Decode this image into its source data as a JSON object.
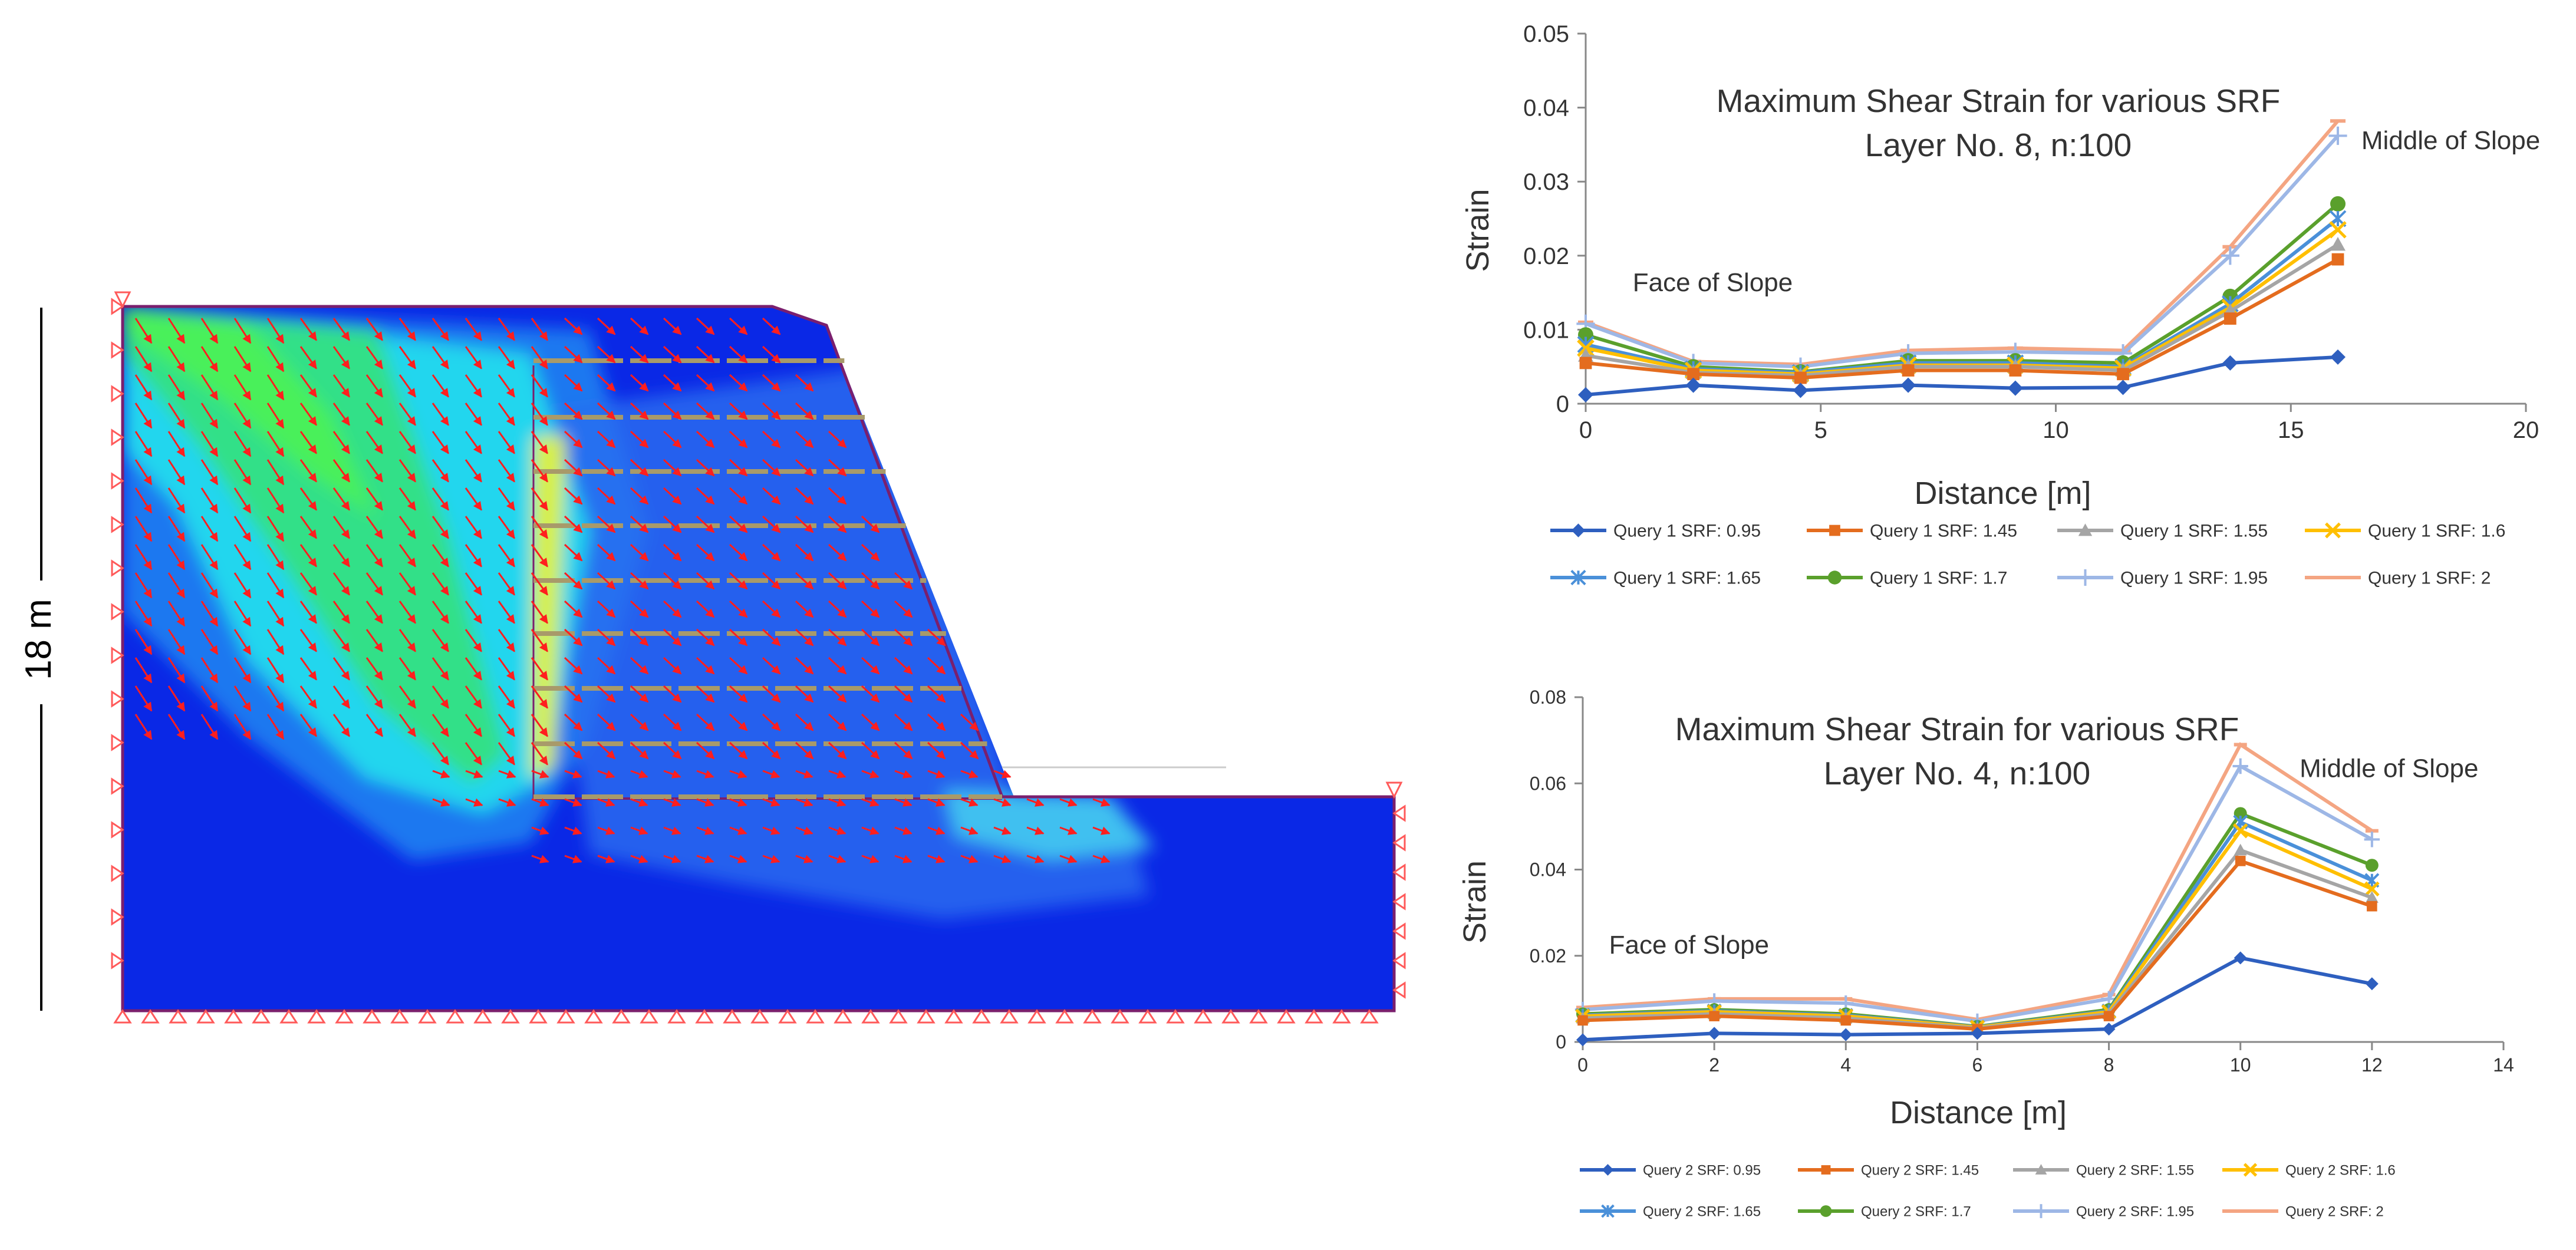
{
  "model": {
    "dimension_label": "18 m",
    "colors": {
      "background": "#0a28e6",
      "boundary": "#7a1f6e",
      "support": "#ff5a5a",
      "arrow": "#ff1e1e",
      "bolt": "#a89a6a"
    }
  },
  "chart_data": [
    {
      "type": "line",
      "title": "Maximum Shear Strain for various SRF",
      "subtitle": "Layer No. 8, n:100",
      "xlabel": "Distance [m]",
      "ylabel": "Strain",
      "xlim": [
        0,
        20
      ],
      "ylim": [
        0,
        0.05
      ],
      "xticks": [
        0,
        5,
        10,
        15,
        20
      ],
      "yticks": [
        0,
        0.01,
        0.02,
        0.03,
        0.04,
        0.05
      ],
      "yticklabels": [
        "0",
        "0.01",
        "0.02",
        "0.03",
        "0.04",
        "0.05"
      ],
      "grid": false,
      "legend_position": "bottom",
      "annotations": [
        {
          "text": "Face of Slope",
          "x": 1,
          "y": 0.0152
        },
        {
          "text": "Middle of Slope",
          "x": 16.5,
          "y": 0.0344
        }
      ],
      "x": [
        0,
        2.29,
        4.57,
        6.86,
        9.14,
        11.43,
        13.71,
        16
      ],
      "series": [
        {
          "name": "Query 1 SRF: 0.95",
          "color": "#2e5fbf",
          "marker": "diamond",
          "values": [
            0.0012,
            0.0025,
            0.0018,
            0.0025,
            0.0021,
            0.0022,
            0.0055,
            0.0063
          ]
        },
        {
          "name": "Query 1 SRF: 1.45",
          "color": "#e46c1e",
          "marker": "square",
          "values": [
            0.0055,
            0.004,
            0.0035,
            0.0045,
            0.0045,
            0.004,
            0.0115,
            0.0195
          ]
        },
        {
          "name": "Query 1 SRF: 1.55",
          "color": "#a5a5a5",
          "marker": "triangle",
          "values": [
            0.0065,
            0.0042,
            0.0038,
            0.005,
            0.005,
            0.0045,
            0.0125,
            0.0215
          ]
        },
        {
          "name": "Query 1 SRF: 1.6",
          "color": "#ffbf00",
          "marker": "x",
          "values": [
            0.0075,
            0.0045,
            0.004,
            0.0052,
            0.0052,
            0.0048,
            0.013,
            0.0235
          ]
        },
        {
          "name": "Query 1 SRF: 1.65",
          "color": "#4a90d9",
          "marker": "star",
          "values": [
            0.008,
            0.0047,
            0.0042,
            0.0055,
            0.0055,
            0.005,
            0.0135,
            0.025
          ]
        },
        {
          "name": "Query 1 SRF: 1.7",
          "color": "#5aa02c",
          "marker": "circle",
          "values": [
            0.0093,
            0.005,
            0.0043,
            0.0058,
            0.0058,
            0.0055,
            0.0145,
            0.027
          ]
        },
        {
          "name": "Query 1 SRF: 1.95",
          "color": "#9db7e6",
          "marker": "plus",
          "values": [
            0.0108,
            0.0055,
            0.005,
            0.0068,
            0.007,
            0.0068,
            0.02,
            0.0362
          ]
        },
        {
          "name": "Query 1 SRF: 2",
          "color": "#f4a582",
          "marker": "dash",
          "values": [
            0.011,
            0.0057,
            0.0053,
            0.0072,
            0.0075,
            0.0072,
            0.0212,
            0.0382
          ]
        }
      ]
    },
    {
      "type": "line",
      "title": "Maximum Shear Strain for various SRF",
      "subtitle": "Layer No. 4, n:100",
      "xlabel": "Distance [m]",
      "ylabel": "Strain",
      "xlim": [
        0,
        14
      ],
      "ylim": [
        0,
        0.08
      ],
      "xticks": [
        0,
        2,
        4,
        6,
        8,
        10,
        12,
        14
      ],
      "yticks": [
        0,
        0.02,
        0.04,
        0.06,
        0.08
      ],
      "yticklabels": [
        "0",
        "0.02",
        "0.04",
        "0.06",
        "0.08"
      ],
      "grid": false,
      "legend_position": "bottom",
      "annotations": [
        {
          "text": "Face of Slope",
          "x": 0.4,
          "y": 0.0205
        },
        {
          "text": "Middle of Slope",
          "x": 10.9,
          "y": 0.0615
        }
      ],
      "x": [
        0,
        2,
        4,
        6,
        8,
        10,
        12
      ],
      "series": [
        {
          "name": "Query 2 SRF: 0.95",
          "color": "#2e5fbf",
          "marker": "diamond",
          "values": [
            0.0005,
            0.002,
            0.0017,
            0.002,
            0.003,
            0.0195,
            0.0135
          ]
        },
        {
          "name": "Query 2 SRF: 1.45",
          "color": "#e46c1e",
          "marker": "square",
          "values": [
            0.005,
            0.006,
            0.005,
            0.003,
            0.006,
            0.042,
            0.0315
          ]
        },
        {
          "name": "Query 2 SRF: 1.55",
          "color": "#a5a5a5",
          "marker": "triangle",
          "values": [
            0.0055,
            0.0065,
            0.0055,
            0.0032,
            0.0065,
            0.0445,
            0.0335
          ]
        },
        {
          "name": "Query 2 SRF: 1.6",
          "color": "#ffbf00",
          "marker": "x",
          "values": [
            0.006,
            0.007,
            0.006,
            0.0034,
            0.007,
            0.049,
            0.0355
          ]
        },
        {
          "name": "Query 2 SRF: 1.65",
          "color": "#4a90d9",
          "marker": "star",
          "values": [
            0.0062,
            0.0072,
            0.0062,
            0.0035,
            0.0072,
            0.051,
            0.0375
          ]
        },
        {
          "name": "Query 2 SRF: 1.7",
          "color": "#5aa02c",
          "marker": "circle",
          "values": [
            0.0065,
            0.0075,
            0.0065,
            0.0036,
            0.0075,
            0.053,
            0.041
          ]
        },
        {
          "name": "Query 2 SRF: 1.95",
          "color": "#9db7e6",
          "marker": "plus",
          "values": [
            0.0075,
            0.0095,
            0.009,
            0.0048,
            0.01,
            0.064,
            0.047
          ]
        },
        {
          "name": "Query 2 SRF: 2",
          "color": "#f4a582",
          "marker": "dash",
          "values": [
            0.008,
            0.01,
            0.01,
            0.0052,
            0.011,
            0.069,
            0.049
          ]
        }
      ]
    }
  ]
}
